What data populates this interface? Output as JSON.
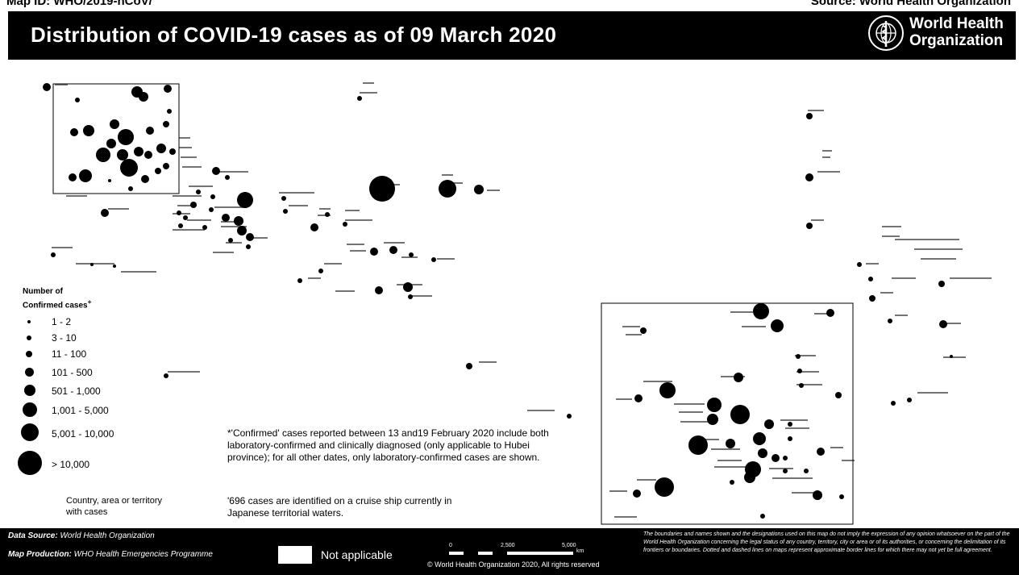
{
  "header": {
    "map_id": "Map ID: WHO/2019-nCoV/",
    "source": "Source: World Health Organization",
    "title": "Distribution of COVID-19 cases as of 09 March 2020",
    "org_name_line1": "World Health",
    "org_name_line2": "Organization"
  },
  "legend": {
    "title_line1": "Number of",
    "title_line2": "Confirmed cases",
    "title_mark": "+",
    "classes": [
      "1 - 2",
      "3 - 10",
      "11 - 100",
      "101 - 500",
      "501 - 1,000",
      "1,001 - 5,000",
      "5,001 - 10,000",
      "> 10,000"
    ],
    "country_line1": "Country, area or territory",
    "country_line2": "with cases"
  },
  "notes": {
    "confirmed": "*'Confirmed' cases reported between 13 and19 February 2020 include both laboratory-confirmed and clinically diagnosed (only applicable to Hubei province); for all other dates, only laboratory-confirmed cases are shown.",
    "ship": "'696 cases are identified on a cruise ship currently in Japanese territorial waters."
  },
  "footer": {
    "data_source_label": "Data Source:",
    "data_source_value": "World Health Organization",
    "production_label": "Map Production:",
    "production_value": "WHO Health Emergencies Programme",
    "not_applicable": "Not applicable",
    "scale_0": "0",
    "scale_mid": "2,500",
    "scale_max": "5,000",
    "scale_unit": "km",
    "copyright": "© World Health Organization 2020, All rights reserved",
    "disclaimer": "The boundaries and names shown and the designations used on this map do not imply the expression of any opinion whatsoever on the part of the World Health Organization concerning the legal status of any country, territory, city or area or of its authorities, or concerning the delimitation of its frontiers or boundaries. Dotted and dashed lines on maps represent approximate border lines for which there may not yet be full agreement."
  },
  "map_style": {
    "background": "#ffffff",
    "ink": "#000000"
  }
}
